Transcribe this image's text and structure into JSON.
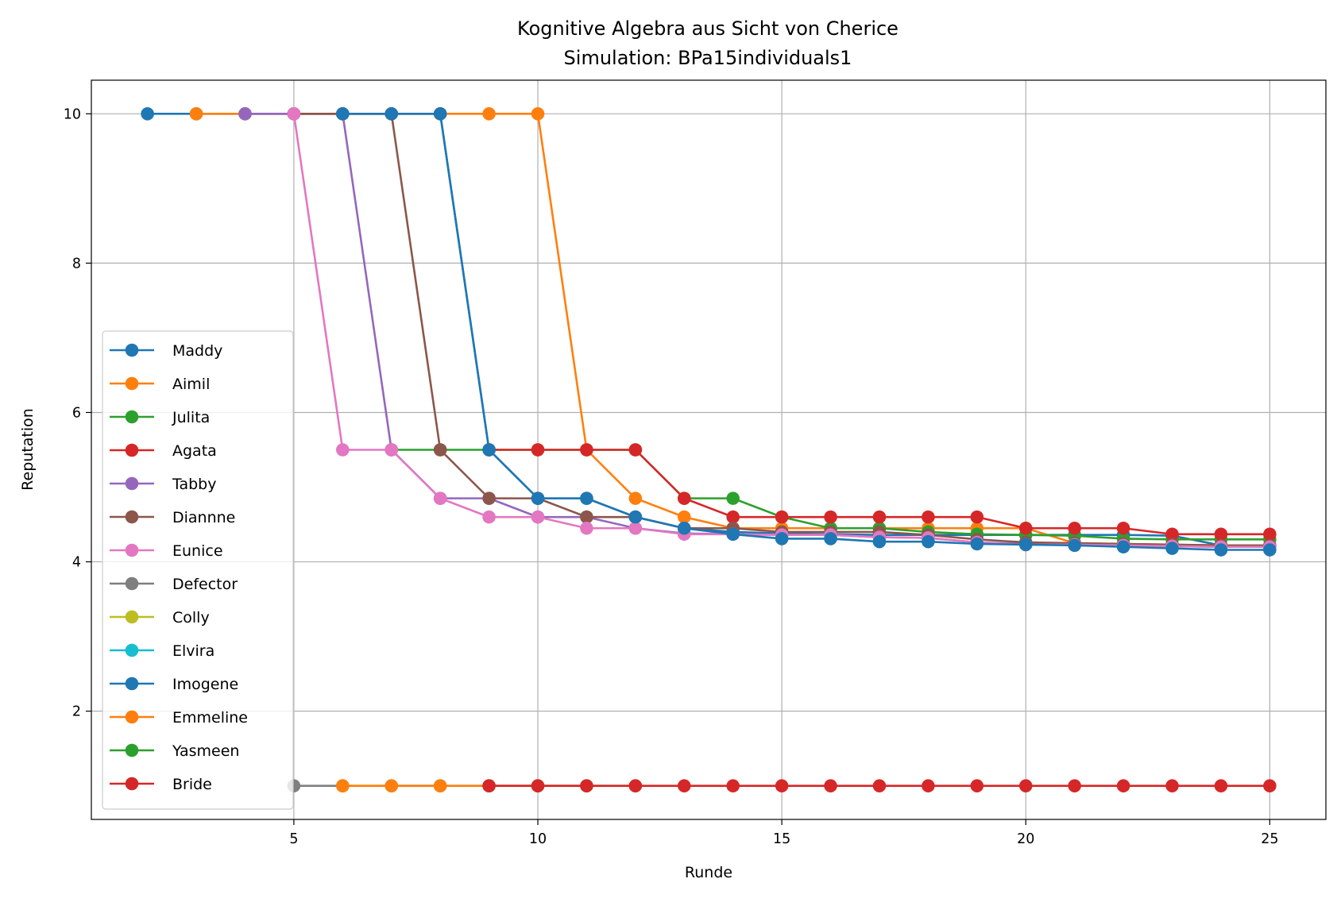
{
  "chart_data": {
    "type": "line",
    "title": "Kognitive Algebra aus Sicht von Cherice",
    "subtitle": "Simulation: BPa15individuals1",
    "xlabel": "Runde",
    "ylabel": "Reputation",
    "xlim": [
      0.85,
      26.15
    ],
    "ylim": [
      0.55,
      10.45
    ],
    "xticks": [
      5,
      10,
      15,
      20,
      25
    ],
    "yticks": [
      2,
      4,
      6,
      8,
      10
    ],
    "grid": true,
    "legend_position": "lower left",
    "series": [
      {
        "name": "Maddy",
        "color": "#1f77b4",
        "x": [
          2,
          3,
          4,
          5,
          6,
          7,
          8,
          9,
          10,
          11,
          12,
          13,
          14,
          15,
          16,
          17,
          18,
          19,
          20,
          21,
          22,
          23,
          24,
          25
        ],
        "y": [
          10,
          10,
          10,
          10,
          10,
          10,
          10,
          5.5,
          4.85,
          4.85,
          4.6,
          4.45,
          4.4,
          4.38,
          4.37,
          4.36,
          4.36,
          4.36,
          4.36,
          4.36,
          4.36,
          4.35,
          4.22,
          4.21
        ]
      },
      {
        "name": "Aimil",
        "color": "#ff7f0e",
        "x": [
          3,
          4,
          5,
          6,
          7,
          8,
          9,
          10,
          11,
          12,
          13,
          14,
          15,
          16,
          17,
          18,
          19,
          20,
          21,
          22,
          23,
          24,
          25
        ],
        "y": [
          10,
          10,
          10,
          10,
          10,
          10,
          10,
          10,
          5.5,
          4.85,
          4.6,
          4.45,
          4.45,
          4.45,
          4.45,
          4.45,
          4.45,
          4.45,
          4.25,
          4.24,
          4.23,
          4.22,
          4.22
        ]
      },
      {
        "name": "Julita",
        "color": "#2ca02c",
        "x": [
          7,
          8,
          9,
          10,
          11,
          12,
          13,
          14,
          15,
          16,
          17,
          18,
          19,
          20,
          21,
          22,
          23,
          24,
          25
        ],
        "y": [
          5.5,
          5.5,
          5.5,
          5.5,
          5.5,
          5.5,
          4.85,
          4.85,
          4.6,
          4.45,
          4.45,
          4.4,
          4.37,
          4.36,
          4.35,
          4.31,
          4.3,
          4.3,
          4.3
        ]
      },
      {
        "name": "Agata",
        "color": "#d62728",
        "x": [
          9,
          10,
          11,
          12,
          13,
          14,
          15,
          16,
          17,
          18,
          19,
          20,
          21,
          22,
          23,
          24,
          25
        ],
        "y": [
          5.5,
          5.5,
          5.5,
          5.5,
          4.85,
          4.6,
          4.6,
          4.6,
          4.6,
          4.6,
          4.6,
          4.45,
          4.45,
          4.45,
          4.37,
          4.37,
          4.37
        ]
      },
      {
        "name": "Tabby",
        "color": "#9467bd",
        "x": [
          4,
          5,
          6,
          7,
          8,
          9,
          10,
          11,
          12,
          13,
          14,
          15,
          16,
          17,
          18,
          19,
          20,
          21,
          22,
          23,
          24,
          25
        ],
        "y": [
          10,
          10,
          10,
          5.5,
          4.85,
          4.85,
          4.6,
          4.6,
          4.45,
          4.38,
          4.37,
          4.36,
          4.36,
          4.33,
          4.32,
          4.26,
          4.24,
          4.23,
          4.22,
          4.21,
          4.2,
          4.2
        ]
      },
      {
        "name": "Diannne",
        "color": "#8c564b",
        "x": [
          5,
          6,
          7,
          8,
          9,
          10,
          11,
          12,
          13,
          14,
          15,
          16,
          17,
          18,
          19,
          20,
          21,
          22,
          23,
          24,
          25
        ],
        "y": [
          10,
          10,
          10,
          5.5,
          4.85,
          4.85,
          4.6,
          4.6,
          4.45,
          4.45,
          4.4,
          4.4,
          4.4,
          4.36,
          4.3,
          4.26,
          4.25,
          4.24,
          4.23,
          4.22,
          4.22
        ]
      },
      {
        "name": "Eunice",
        "color": "#e377c2",
        "x": [
          5,
          6,
          7,
          8,
          9,
          10,
          11,
          12,
          13,
          14,
          15,
          16,
          17,
          18,
          19,
          20,
          21,
          22,
          23,
          24,
          25
        ],
        "y": [
          10,
          5.5,
          5.5,
          4.85,
          4.6,
          4.6,
          4.45,
          4.45,
          4.37,
          4.37,
          4.36,
          4.36,
          4.33,
          4.32,
          4.26,
          4.23,
          4.23,
          4.22,
          4.21,
          4.2,
          4.2
        ]
      },
      {
        "name": "Defector",
        "color": "#7f7f7f",
        "x": [
          5,
          6
        ],
        "y": [
          1,
          1
        ]
      },
      {
        "name": "Colly",
        "color": "#bcbd22",
        "x": [
          6,
          7,
          8
        ],
        "y": [
          1,
          1,
          1
        ]
      },
      {
        "name": "Elvira",
        "color": "#17becf",
        "x": [
          7,
          8,
          9
        ],
        "y": [
          1,
          1,
          1
        ]
      },
      {
        "name": "Imogene",
        "color": "#1f77b4",
        "x": [
          6,
          7,
          8,
          9,
          10,
          11,
          12,
          13,
          14,
          15,
          16,
          17,
          18,
          19,
          20,
          21,
          22,
          23,
          24,
          25
        ],
        "y": [
          10,
          10,
          10,
          5.5,
          4.85,
          4.85,
          4.6,
          4.45,
          4.37,
          4.31,
          4.31,
          4.27,
          4.27,
          4.24,
          4.23,
          4.22,
          4.2,
          4.18,
          4.16,
          4.16
        ]
      },
      {
        "name": "Emmeline",
        "color": "#ff7f0e",
        "x": [
          6,
          7,
          8,
          9,
          10,
          11
        ],
        "y": [
          1,
          1,
          1,
          1,
          1,
          1
        ]
      },
      {
        "name": "Yasmeen",
        "color": "#2ca02c",
        "x": [
          9,
          10,
          11,
          12
        ],
        "y": [
          1,
          1,
          1,
          1
        ]
      },
      {
        "name": "Bride",
        "color": "#d62728",
        "x": [
          9,
          10,
          11,
          12,
          13,
          14,
          15,
          16,
          17,
          18,
          19,
          20,
          21,
          22,
          23,
          24,
          25
        ],
        "y": [
          1,
          1,
          1,
          1,
          1,
          1,
          1,
          1,
          1,
          1,
          1,
          1,
          1,
          1,
          1,
          1,
          1
        ]
      }
    ]
  }
}
